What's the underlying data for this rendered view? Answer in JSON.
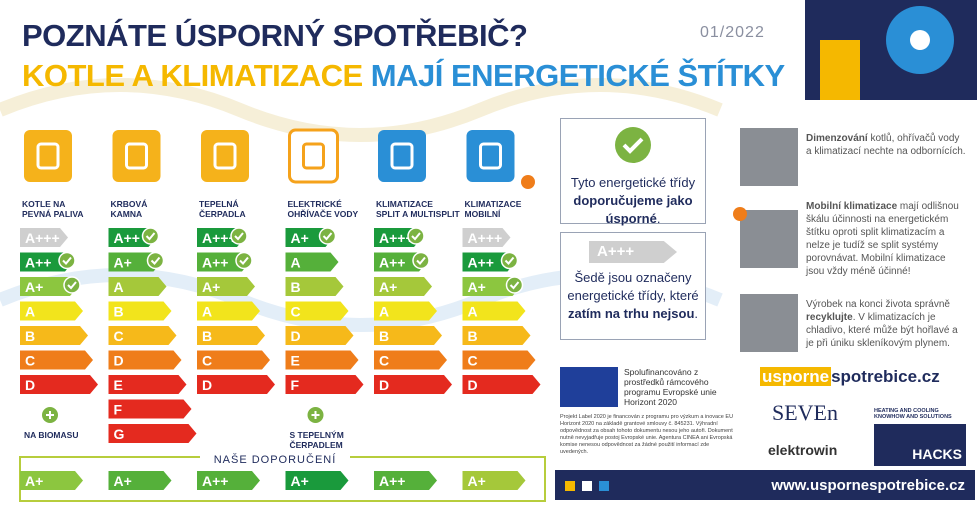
{
  "header": {
    "title": "POZNÁTE ÚSPORNÝ SPOTŘEBIČ?",
    "subtitle_part1": "KOTLE A KLIMATIZACE",
    "subtitle_part2": "MAJÍ ENERGETICKÉ ŠTÍTKY",
    "date": "01/2022"
  },
  "columns": [
    {
      "label": [
        "KOTLE NA",
        "PEVNÁ PALIVA"
      ],
      "icon_color": "#f5b21b",
      "classes": [
        {
          "label": "A+++",
          "color": "#cfcfcf",
          "check": false
        },
        {
          "label": "A++",
          "color": "#1a9a3c",
          "check": true
        },
        {
          "label": "A+",
          "color": "#8cc63f",
          "check": true
        },
        {
          "label": "A",
          "color": "#f2e41c",
          "check": false
        },
        {
          "label": "B",
          "color": "#f6b91a",
          "check": false
        },
        {
          "label": "C",
          "color": "#ef7d1a",
          "check": false
        },
        {
          "label": "D",
          "color": "#e42a1f",
          "check": false
        }
      ],
      "note": "NA BIOMASU"
    },
    {
      "label": [
        "KRBOVÁ",
        "KAMNA"
      ],
      "icon_color": "#f5b21b",
      "classes": [
        {
          "label": "A++",
          "color": "#1a9a3c",
          "check": true
        },
        {
          "label": "A+",
          "color": "#55b03a",
          "check": true
        },
        {
          "label": "A",
          "color": "#a5c83a",
          "check": false
        },
        {
          "label": "B",
          "color": "#f2e41c",
          "check": false
        },
        {
          "label": "C",
          "color": "#f6b91a",
          "check": false
        },
        {
          "label": "D",
          "color": "#ef7d1a",
          "check": false
        },
        {
          "label": "E",
          "color": "#e42a1f",
          "check": false
        },
        {
          "label": "F",
          "color": "#e42a1f",
          "check": false
        },
        {
          "label": "G",
          "color": "#e42a1f",
          "check": false
        }
      ]
    },
    {
      "label": [
        "TEPELNÁ",
        "ČERPADLA"
      ],
      "icon_color": "#f5b21b",
      "classes": [
        {
          "label": "A+++",
          "color": "#1a9a3c",
          "check": true
        },
        {
          "label": "A++",
          "color": "#55b03a",
          "check": true
        },
        {
          "label": "A+",
          "color": "#a5c83a",
          "check": false
        },
        {
          "label": "A",
          "color": "#f2e41c",
          "check": false
        },
        {
          "label": "B",
          "color": "#f6b91a",
          "check": false
        },
        {
          "label": "C",
          "color": "#ef7d1a",
          "check": false
        },
        {
          "label": "D",
          "color": "#e42a1f",
          "check": false
        }
      ]
    },
    {
      "label": [
        "ELEKTRICKÉ",
        "OHŘÍVAČE VODY"
      ],
      "icon_color": "#ffffff",
      "classes": [
        {
          "label": "A+",
          "color": "#1a9a3c",
          "check": true
        },
        {
          "label": "A",
          "color": "#55b03a",
          "check": false
        },
        {
          "label": "B",
          "color": "#a5c83a",
          "check": false
        },
        {
          "label": "C",
          "color": "#f2e41c",
          "check": false
        },
        {
          "label": "D",
          "color": "#f6b91a",
          "check": false
        },
        {
          "label": "E",
          "color": "#ef7d1a",
          "check": false
        },
        {
          "label": "F",
          "color": "#e42a1f",
          "check": false
        }
      ],
      "note": "S TEPELNÝM ČERPADLEM"
    },
    {
      "label": [
        "KLIMATIZACE",
        "SPLIT A MULTISPLIT"
      ],
      "icon_color": "#2a8fd6",
      "classes": [
        {
          "label": "A+++",
          "color": "#1a9a3c",
          "check": true
        },
        {
          "label": "A++",
          "color": "#55b03a",
          "check": true
        },
        {
          "label": "A+",
          "color": "#a5c83a",
          "check": false
        },
        {
          "label": "A",
          "color": "#f2e41c",
          "check": false
        },
        {
          "label": "B",
          "color": "#f6b91a",
          "check": false
        },
        {
          "label": "C",
          "color": "#ef7d1a",
          "check": false
        },
        {
          "label": "D",
          "color": "#e42a1f",
          "check": false
        }
      ]
    },
    {
      "label": [
        "KLIMATIZACE",
        "MOBILNÍ"
      ],
      "icon_color": "#2a8fd6",
      "classes": [
        {
          "label": "A+++",
          "color": "#cfcfcf",
          "check": false
        },
        {
          "label": "A++",
          "color": "#1a9a3c",
          "check": true
        },
        {
          "label": "A+",
          "color": "#8cc63f",
          "check": true
        },
        {
          "label": "A",
          "color": "#f2e41c",
          "check": false
        },
        {
          "label": "B",
          "color": "#f6b91a",
          "check": false
        },
        {
          "label": "C",
          "color": "#ef7d1a",
          "check": false
        },
        {
          "label": "D",
          "color": "#e42a1f",
          "check": false
        }
      ]
    }
  ],
  "recommendation": {
    "title": "NAŠE DOPORUČENÍ",
    "items": [
      {
        "label": "A+",
        "color": "#8cc63f"
      },
      {
        "label": "A+",
        "color": "#55b03a"
      },
      {
        "label": "A++",
        "color": "#55b03a"
      },
      {
        "label": "A+",
        "color": "#1a9a3c"
      },
      {
        "label": "A++",
        "color": "#55b03a"
      },
      {
        "label": "A+",
        "color": "#a5c83a"
      }
    ]
  },
  "info_recommended": {
    "text": "Tyto energetické třídy",
    "bold": "doporučujeme jako úsporné",
    "end": "."
  },
  "info_gray": {
    "sample": "A+++",
    "text": "Šedě jsou označeny energetické třídy, které",
    "bold": "zatím na trhu nejsou",
    "end": "."
  },
  "tips": [
    {
      "bold": "Dimenzování",
      "text": " kotlů, ohřívačů vody a klimatizací nechte na odbornících."
    },
    {
      "bold": "Mobilní klimatizace",
      "text": " mají odlišnou škálu účinnosti na energetickém štítku oproti split klimatizacím a nelze je tudíž se split systémy porovnávat. Mobilní klimatizace jsou vždy méně účinné!"
    },
    {
      "before": "Výrobek na konci života správně ",
      "bold": "recyklujte",
      "text": ". V klimatizacích je chladivo, které může být hořlavé a je při úniku skleníkovým plynem."
    }
  ],
  "funding": {
    "text": "Spolufinancováno z prostředků rámcového programu Evropské unie Horizont 2020",
    "disclaimer": "Projekt Label 2020 je financován z programu pro výzkum a inovace EU Horizont 2020 na základě grantové smlouvy č. 845231. Výhradní odpovědnost za obsah tohoto dokumentu nesou jeho autoři. Dokument nutně nevyjadřuje postoj Evropské unie. Agentura CINEA ani Evropská komise nenesou odpovědnost za žádné použití informací zde uvedených."
  },
  "logos": {
    "site_part1": "usporne",
    "site_part2": "spotrebice.cz",
    "seven": "SEVEn",
    "elektrowin": "elektrowin",
    "hacks_tagline": "HEATING AND COOLING KNOWHOW AND SOLUTIONS",
    "hacks": "HACKS"
  },
  "footer": {
    "url": "www.uspornespotrebice.cz"
  }
}
